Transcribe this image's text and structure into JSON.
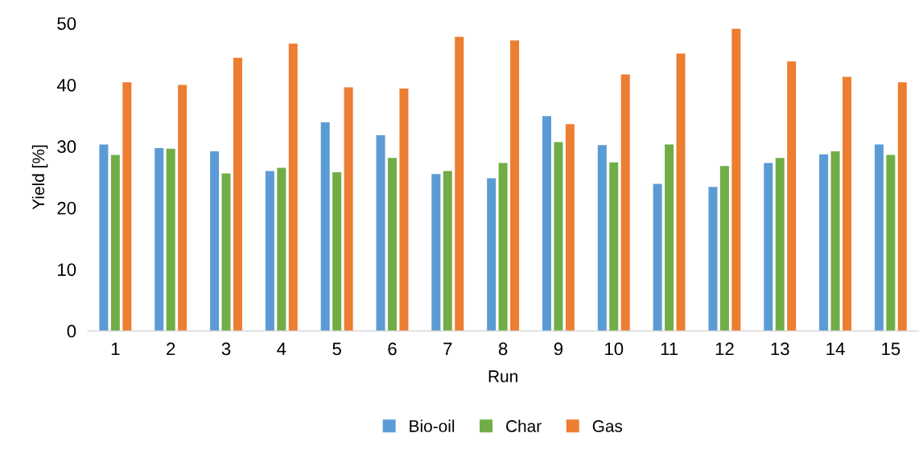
{
  "chart_data": {
    "type": "bar",
    "xlabel": "Run",
    "ylabel": "Yield [%]",
    "categories": [
      "1",
      "2",
      "3",
      "4",
      "5",
      "6",
      "7",
      "8",
      "9",
      "10",
      "11",
      "12",
      "13",
      "14",
      "15"
    ],
    "series": [
      {
        "name": "Bio-oil",
        "color": "#5b9bd5",
        "values": [
          30.3,
          29.7,
          29.2,
          26.0,
          33.9,
          31.8,
          25.5,
          24.8,
          34.9,
          30.2,
          23.9,
          23.4,
          27.3,
          28.7,
          30.3
        ]
      },
      {
        "name": "Char",
        "color": "#70ad47",
        "values": [
          28.6,
          29.6,
          25.6,
          26.5,
          25.8,
          28.1,
          26.0,
          27.3,
          30.7,
          27.4,
          30.3,
          26.8,
          28.1,
          29.2,
          28.6
        ]
      },
      {
        "name": "Gas",
        "color": "#ed7d31",
        "values": [
          40.4,
          40.0,
          44.4,
          46.7,
          39.6,
          39.4,
          47.8,
          47.2,
          33.6,
          41.7,
          45.1,
          49.1,
          43.8,
          41.3,
          40.4
        ]
      }
    ],
    "ylim": [
      0,
      50
    ],
    "yticks": [
      0,
      10,
      20,
      30,
      40,
      50
    ],
    "grid": false,
    "legend": "bottom"
  }
}
